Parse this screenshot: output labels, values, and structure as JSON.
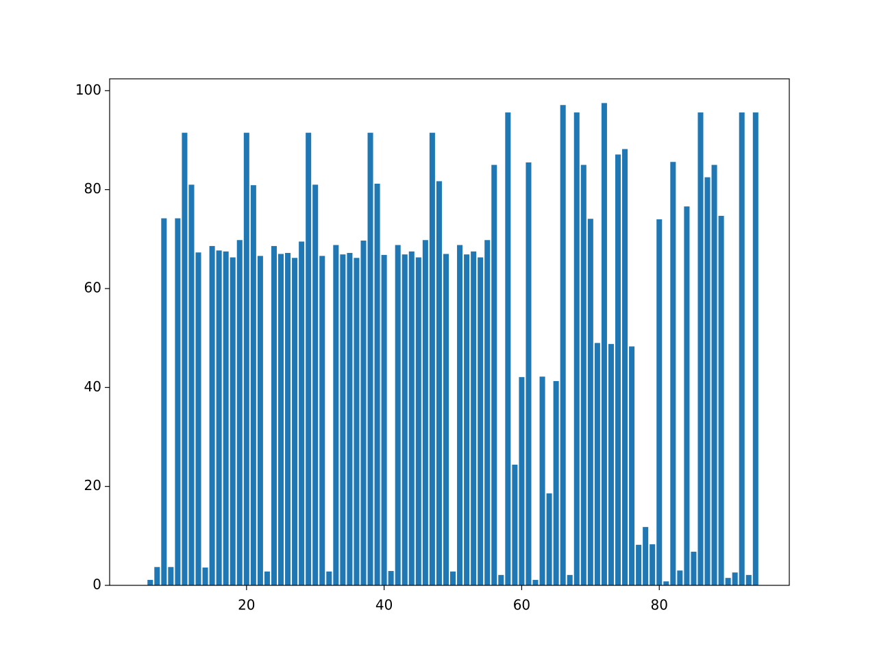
{
  "chart_data": {
    "type": "bar",
    "x": [
      6,
      7,
      8,
      9,
      10,
      11,
      12,
      13,
      14,
      15,
      16,
      17,
      18,
      19,
      20,
      21,
      22,
      23,
      24,
      25,
      26,
      27,
      28,
      29,
      30,
      31,
      32,
      33,
      34,
      35,
      36,
      37,
      38,
      39,
      40,
      41,
      42,
      43,
      44,
      45,
      46,
      47,
      48,
      49,
      50,
      51,
      52,
      53,
      54,
      55,
      56,
      57,
      58,
      59,
      60,
      61,
      62,
      63,
      64,
      65,
      66,
      67,
      68,
      69,
      70,
      71,
      72,
      73,
      74,
      75,
      76,
      77,
      78,
      79,
      80,
      81,
      82,
      83,
      84,
      85,
      86,
      87,
      88,
      89,
      90,
      91,
      92,
      93,
      94
    ],
    "values": [
      1.1,
      3.7,
      74.2,
      3.7,
      74.2,
      91.5,
      81,
      67.3,
      3.6,
      68.6,
      67.7,
      67.5,
      66.3,
      69.8,
      91.5,
      80.9,
      66.6,
      2.8,
      68.6,
      67,
      67.2,
      66.2,
      69.5,
      91.5,
      81,
      66.6,
      2.8,
      68.8,
      66.9,
      67.2,
      66.2,
      69.7,
      91.5,
      81.2,
      66.8,
      2.9,
      68.8,
      66.9,
      67.5,
      66.3,
      69.8,
      91.5,
      81.7,
      67,
      2.8,
      68.8,
      66.9,
      67.5,
      66.3,
      69.8,
      85,
      2.1,
      95.6,
      24.4,
      42.1,
      85.5,
      1.1,
      42.2,
      18.6,
      41.3,
      97.1,
      2.1,
      95.6,
      85,
      74.1,
      49,
      97.5,
      48.8,
      87.1,
      88.2,
      48.3,
      8.2,
      11.8,
      8.3,
      74,
      0.8,
      85.6,
      3,
      76.6,
      6.8,
      95.6,
      82.5,
      85,
      74.7,
      1.5,
      2.6,
      95.6,
      2.1,
      95.6
    ],
    "color": "#1f77b4",
    "bar_width": 0.8,
    "xlim": [
      0.1,
      98.9
    ],
    "xticks": [
      20,
      40,
      60,
      80
    ],
    "ylim": [
      0,
      102.4
    ],
    "yticks": [
      0,
      20,
      40,
      60,
      80,
      100
    ],
    "grid": false
  }
}
